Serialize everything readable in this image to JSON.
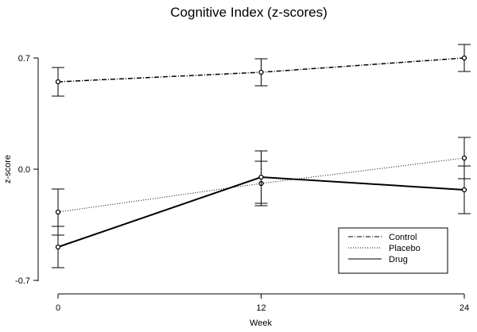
{
  "chart_data": {
    "type": "line",
    "title": "Cognitive Index (z-scores)",
    "xlabel": "Week",
    "ylabel": "z-score",
    "x": [
      0,
      12,
      24
    ],
    "x_ticks": [
      "0",
      "12",
      "24"
    ],
    "y_ticks": [
      "0.7",
      "0.0",
      "-0.7"
    ],
    "y_tick_values": [
      0.7,
      0.0,
      -0.7
    ],
    "xlim": [
      -0.5,
      24.5
    ],
    "ylim": [
      -0.72,
      0.79
    ],
    "grid": false,
    "legend_position": "bottom-right",
    "series": [
      {
        "name": "Control",
        "values": [
          0.55,
          0.61,
          0.7
        ],
        "error": [
          0.09,
          0.085,
          0.085
        ],
        "dash": "dashdot",
        "stroke_width": 1.5
      },
      {
        "name": "Placebo",
        "values": [
          -0.27,
          -0.09,
          0.07
        ],
        "error": [
          0.145,
          0.14,
          0.13
        ],
        "dash": "dotted",
        "stroke_width": 1
      },
      {
        "name": "Drug",
        "values": [
          -0.49,
          -0.05,
          -0.13
        ],
        "error": [
          0.13,
          0.165,
          0.15
        ],
        "dash": "solid",
        "stroke_width": 2
      }
    ]
  }
}
